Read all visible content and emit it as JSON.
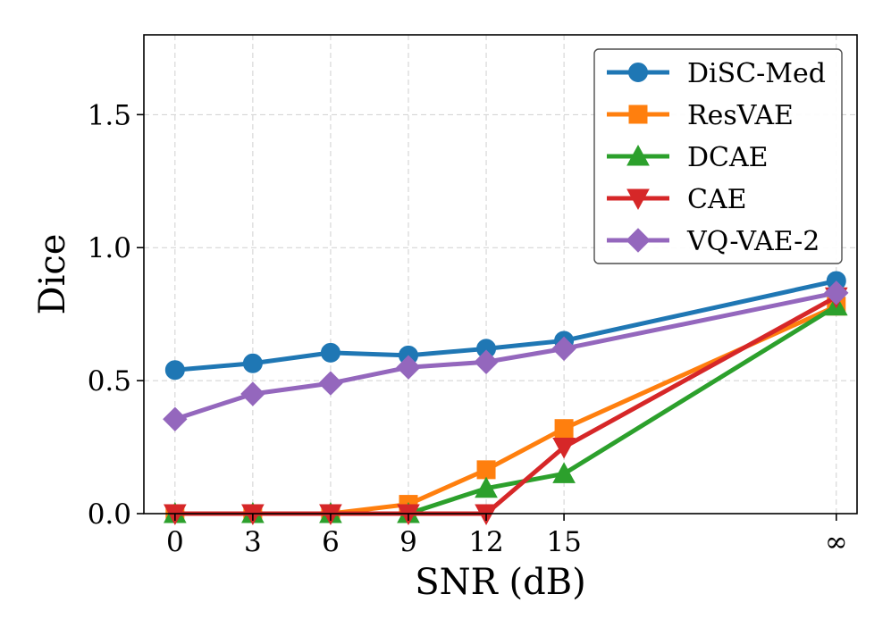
{
  "chart_data": {
    "type": "line",
    "title": "",
    "xlabel": "SNR (dB)",
    "ylabel": "Dice",
    "x_labels": [
      "0",
      "3",
      "6",
      "9",
      "12",
      "15",
      "∞"
    ],
    "x_positions": [
      0,
      3,
      6,
      9,
      12,
      15,
      25.5
    ],
    "xlim": [
      -1.2,
      26.3
    ],
    "ylim": [
      0,
      1.8
    ],
    "yticks": [
      0.0,
      0.5,
      1.0,
      1.5
    ],
    "ytick_labels": [
      "0.0",
      "0.5",
      "1.0",
      "1.5"
    ],
    "grid": true,
    "legend_position": "top-right",
    "series": [
      {
        "name": "DiSC-Med",
        "color": "#1f77b4",
        "marker": "circle",
        "values": [
          0.54,
          0.565,
          0.605,
          0.595,
          0.62,
          0.65,
          0.875
        ]
      },
      {
        "name": "ResVAE",
        "color": "#ff7f0e",
        "marker": "square",
        "values": [
          0.0,
          0.0,
          0.0,
          0.035,
          0.165,
          0.32,
          0.78
        ]
      },
      {
        "name": "DCAE",
        "color": "#2ca02c",
        "marker": "triangle-up",
        "values": [
          0.0,
          0.0,
          0.0,
          0.0,
          0.095,
          0.15,
          0.78
        ]
      },
      {
        "name": "CAE",
        "color": "#d62728",
        "marker": "triangle-down",
        "values": [
          0.0,
          0.0,
          0.0,
          0.0,
          0.0,
          0.25,
          0.815
        ]
      },
      {
        "name": "VQ-VAE-2",
        "color": "#9467bd",
        "marker": "diamond",
        "values": [
          0.355,
          0.45,
          0.49,
          0.55,
          0.57,
          0.62,
          0.83
        ]
      }
    ]
  }
}
